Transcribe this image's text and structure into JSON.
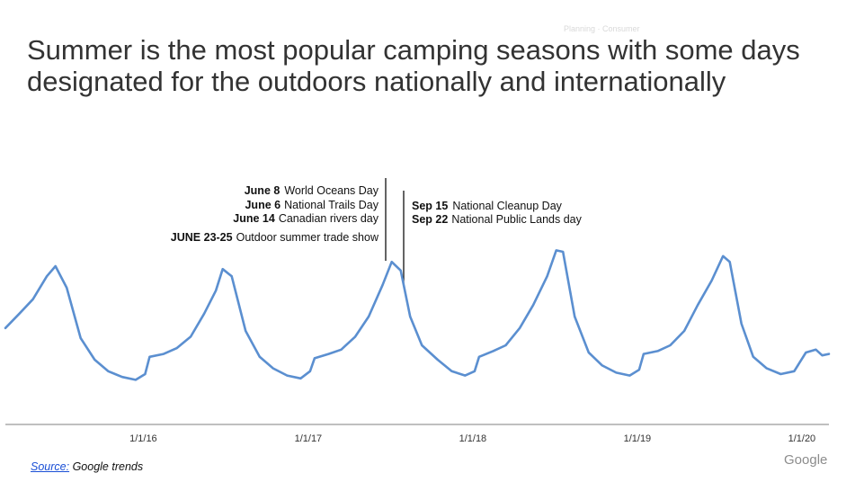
{
  "header": {
    "faint_label": "Planning · Consumer",
    "title": "Summer is the most popular camping seasons with some days designated for the outdoors nationally and internationally"
  },
  "annotations_left": [
    {
      "bold": "June 8",
      "text": "World Oceans Day"
    },
    {
      "bold": "June 6",
      "text": "National Trails Day"
    },
    {
      "bold": "June 14",
      "text": "Canadian rivers day"
    },
    {
      "bold": "JUNE 23-25",
      "text": "Outdoor summer trade show"
    }
  ],
  "annotations_right": [
    {
      "bold": "Sep 15",
      "text": "National Cleanup Day"
    },
    {
      "bold": "Sep 22",
      "text": "National Public Lands day"
    }
  ],
  "footer": {
    "source_link": "Source:",
    "source_text": "Google trends",
    "brand": "Google"
  },
  "colors": {
    "line": "#5b8fd0",
    "axis": "#999999"
  },
  "chart_data": {
    "type": "line",
    "title": "",
    "xlabel": "",
    "ylabel": "",
    "x_tick_labels": [
      "1/1/16",
      "1/1/17",
      "1/1/18",
      "1/1/19",
      "1/1/20"
    ],
    "x_ticks": [
      "2016-01-01",
      "2017-01-01",
      "2018-01-01",
      "2019-01-01",
      "2020-01-01"
    ],
    "x_range": [
      "2015-03-01",
      "2020-03-01"
    ],
    "ylim": [
      0,
      100
    ],
    "grid": false,
    "series": [
      {
        "points": [
          [
            "2015-03-01",
            42
          ],
          [
            "2015-04-01",
            52
          ],
          [
            "2015-05-01",
            62
          ],
          [
            "2015-06-01",
            78
          ],
          [
            "2015-06-20",
            85
          ],
          [
            "2015-07-15",
            70
          ],
          [
            "2015-08-15",
            35
          ],
          [
            "2015-09-15",
            20
          ],
          [
            "2015-10-15",
            12
          ],
          [
            "2015-11-15",
            8
          ],
          [
            "2015-12-15",
            6
          ],
          [
            "2016-01-05",
            10
          ],
          [
            "2016-01-15",
            22
          ],
          [
            "2016-02-15",
            24
          ],
          [
            "2016-03-15",
            28
          ],
          [
            "2016-04-15",
            36
          ],
          [
            "2016-05-15",
            52
          ],
          [
            "2016-06-10",
            68
          ],
          [
            "2016-06-25",
            83
          ],
          [
            "2016-07-15",
            78
          ],
          [
            "2016-08-15",
            40
          ],
          [
            "2016-09-15",
            22
          ],
          [
            "2016-10-15",
            14
          ],
          [
            "2016-11-15",
            9
          ],
          [
            "2016-12-15",
            7
          ],
          [
            "2017-01-05",
            12
          ],
          [
            "2017-01-15",
            21
          ],
          [
            "2017-02-15",
            24
          ],
          [
            "2017-03-15",
            27
          ],
          [
            "2017-04-15",
            36
          ],
          [
            "2017-05-15",
            50
          ],
          [
            "2017-06-15",
            72
          ],
          [
            "2017-07-05",
            88
          ],
          [
            "2017-07-25",
            82
          ],
          [
            "2017-08-15",
            50
          ],
          [
            "2017-09-10",
            30
          ],
          [
            "2017-10-15",
            20
          ],
          [
            "2017-11-15",
            12
          ],
          [
            "2017-12-15",
            9
          ],
          [
            "2018-01-05",
            12
          ],
          [
            "2018-01-15",
            22
          ],
          [
            "2018-02-15",
            26
          ],
          [
            "2018-03-15",
            30
          ],
          [
            "2018-04-15",
            42
          ],
          [
            "2018-05-15",
            58
          ],
          [
            "2018-06-15",
            78
          ],
          [
            "2018-07-05",
            96
          ],
          [
            "2018-07-20",
            95
          ],
          [
            "2018-08-15",
            50
          ],
          [
            "2018-09-15",
            25
          ],
          [
            "2018-10-15",
            16
          ],
          [
            "2018-11-15",
            11
          ],
          [
            "2018-12-15",
            9
          ],
          [
            "2019-01-05",
            13
          ],
          [
            "2019-01-15",
            24
          ],
          [
            "2019-02-15",
            26
          ],
          [
            "2019-03-15",
            30
          ],
          [
            "2019-04-15",
            40
          ],
          [
            "2019-05-15",
            58
          ],
          [
            "2019-06-15",
            75
          ],
          [
            "2019-07-10",
            92
          ],
          [
            "2019-07-25",
            88
          ],
          [
            "2019-08-20",
            45
          ],
          [
            "2019-09-15",
            22
          ],
          [
            "2019-10-15",
            14
          ],
          [
            "2019-11-15",
            10
          ],
          [
            "2019-12-15",
            12
          ],
          [
            "2020-01-10",
            25
          ],
          [
            "2020-02-01",
            27
          ],
          [
            "2020-02-15",
            23
          ],
          [
            "2020-03-01",
            24
          ]
        ]
      }
    ]
  }
}
